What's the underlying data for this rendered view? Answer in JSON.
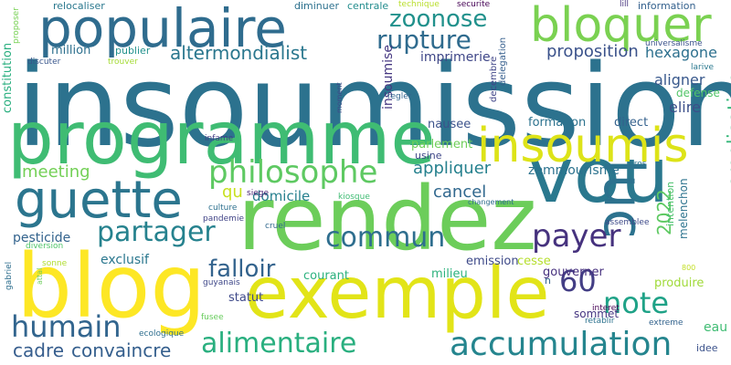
{
  "words": [
    {
      "text": "insoumission",
      "color": "#2c728e"
    },
    {
      "text": "programme",
      "color": "#3fbc73"
    },
    {
      "text": "rendez",
      "color": "#6ccd5a"
    },
    {
      "text": "exemple",
      "color": "#e2e418"
    },
    {
      "text": "blog",
      "color": "#fde725"
    },
    {
      "text": "vou",
      "color": "#2a788e"
    },
    {
      "text": "populaire",
      "color": "#2f6c8e"
    },
    {
      "text": "insoumis",
      "color": "#dde318"
    },
    {
      "text": "guette",
      "color": "#2b758e"
    },
    {
      "text": "bloquer",
      "color": "#7ad151"
    },
    {
      "text": "philosophe",
      "color": "#5ec962"
    },
    {
      "text": "luc",
      "color": "#2c728e"
    },
    {
      "text": "accumulation",
      "color": "#25858e"
    },
    {
      "text": "alimentaire",
      "color": "#29af7f"
    },
    {
      "text": "partager",
      "color": "#26828e"
    },
    {
      "text": "payer",
      "color": "#46327e"
    },
    {
      "text": "commun",
      "color": "#2e6e8e"
    },
    {
      "text": "humain",
      "color": "#32658e"
    },
    {
      "text": "rupture",
      "color": "#2f6b8e"
    },
    {
      "text": "zoonose",
      "color": "#21918c"
    },
    {
      "text": "note",
      "color": "#1fa287"
    },
    {
      "text": "falloir",
      "color": "#33638d"
    },
    {
      "text": "60",
      "color": "#433e85"
    },
    {
      "text": "2022",
      "color": "#5ec962"
    },
    {
      "text": "creolisation",
      "color": "#35b779"
    },
    {
      "text": "altermondialist",
      "color": "#2a778e"
    },
    {
      "text": "convaincre",
      "color": "#355f8d"
    },
    {
      "text": "cadre",
      "color": "#365d8d"
    },
    {
      "text": "meeting",
      "color": "#73d056"
    },
    {
      "text": "appliquer",
      "color": "#26818e"
    },
    {
      "text": "cancel",
      "color": "#31688e"
    },
    {
      "text": "qu",
      "color": "#c8e020"
    },
    {
      "text": "domicile",
      "color": "#27808e"
    },
    {
      "text": "proposition",
      "color": "#3b528b"
    },
    {
      "text": "hexagone",
      "color": "#2d708e"
    },
    {
      "text": "aligner",
      "color": "#38588c"
    },
    {
      "text": "elire",
      "color": "#3c4f8a"
    },
    {
      "text": "imprimerie",
      "color": "#3f4788"
    },
    {
      "text": "insoumise",
      "color": "#453781"
    },
    {
      "text": "exclusif",
      "color": "#2a778e"
    },
    {
      "text": "pesticide",
      "color": "#33638d"
    },
    {
      "text": "zemmourisme",
      "color": "#2c728e"
    },
    {
      "text": "parlement",
      "color": "#6ece58"
    },
    {
      "text": "formation",
      "color": "#2c728e"
    },
    {
      "text": "direct",
      "color": "#34618d"
    },
    {
      "text": "nausee",
      "color": "#3b528b"
    },
    {
      "text": "million",
      "color": "#2d708e"
    },
    {
      "text": "publier",
      "color": "#21918c"
    },
    {
      "text": "constitution",
      "color": "#29af7f"
    },
    {
      "text": "emission",
      "color": "#3e4a89"
    },
    {
      "text": "cesse",
      "color": "#b5de2b"
    },
    {
      "text": "courant",
      "color": "#2cb17e"
    },
    {
      "text": "milieu",
      "color": "#2db27d"
    },
    {
      "text": "gouverner",
      "color": "#46307e"
    },
    {
      "text": "produire",
      "color": "#a0da39"
    },
    {
      "text": "statut",
      "color": "#3e4989"
    },
    {
      "text": "sommet",
      "color": "#453581"
    },
    {
      "text": "eau",
      "color": "#3fbc73"
    },
    {
      "text": "defense",
      "color": "#52c569"
    },
    {
      "text": "melenchon",
      "color": "#2c738e"
    },
    {
      "text": "usine",
      "color": "#3f4788"
    },
    {
      "text": "relocaliser",
      "color": "#2a788e"
    },
    {
      "text": "diminuer",
      "color": "#2d718e"
    },
    {
      "text": "centrale",
      "color": "#228c8d"
    },
    {
      "text": "technique",
      "color": "#b8de29"
    },
    {
      "text": "securite",
      "color": "#440154"
    },
    {
      "text": "lill",
      "color": "#46327e"
    },
    {
      "text": "information",
      "color": "#34618d"
    },
    {
      "text": "universalisme",
      "color": "#3b528b"
    },
    {
      "text": "larive",
      "color": "#2a788e"
    },
    {
      "text": "proposer",
      "color": "#77d153"
    },
    {
      "text": "discuter",
      "color": "#39568c"
    },
    {
      "text": "trouver",
      "color": "#a5db36"
    },
    {
      "text": "decembre",
      "color": "#404588"
    },
    {
      "text": "delegation",
      "color": "#355e8d"
    },
    {
      "text": "moment",
      "color": "#3e4989"
    },
    {
      "text": "regler",
      "color": "#32648e"
    },
    {
      "text": "infame",
      "color": "#433e85"
    },
    {
      "text": "intention",
      "color": "#4ac16d"
    },
    {
      "text": "gros",
      "color": "#2b748e"
    },
    {
      "text": "siege",
      "color": "#482173"
    },
    {
      "text": "kiosque",
      "color": "#3fbc73"
    },
    {
      "text": "culture",
      "color": "#2d708e"
    },
    {
      "text": "pandemie",
      "color": "#414487"
    },
    {
      "text": "cruel",
      "color": "#31688e"
    },
    {
      "text": "changement",
      "color": "#2e6d8e"
    },
    {
      "text": "assemblee",
      "color": "#3e4a89"
    },
    {
      "text": "diversion",
      "color": "#50c46a"
    },
    {
      "text": "sonne",
      "color": "#b0dd2f"
    },
    {
      "text": "gabriel",
      "color": "#2e6e8e"
    },
    {
      "text": "attal",
      "color": "#6ccd5a"
    },
    {
      "text": "guyanais",
      "color": "#3f4889"
    },
    {
      "text": "fusee",
      "color": "#67cc5c"
    },
    {
      "text": "ecologique",
      "color": "#2e6e8e"
    },
    {
      "text": "interet",
      "color": "#440154"
    },
    {
      "text": "retablir",
      "color": "#2c728e"
    },
    {
      "text": "extreme",
      "color": "#33638d"
    },
    {
      "text": "idee",
      "color": "#3b528b"
    },
    {
      "text": "800",
      "color": "#c2df23"
    },
    {
      "text": "n",
      "color": "#33638d"
    }
  ]
}
